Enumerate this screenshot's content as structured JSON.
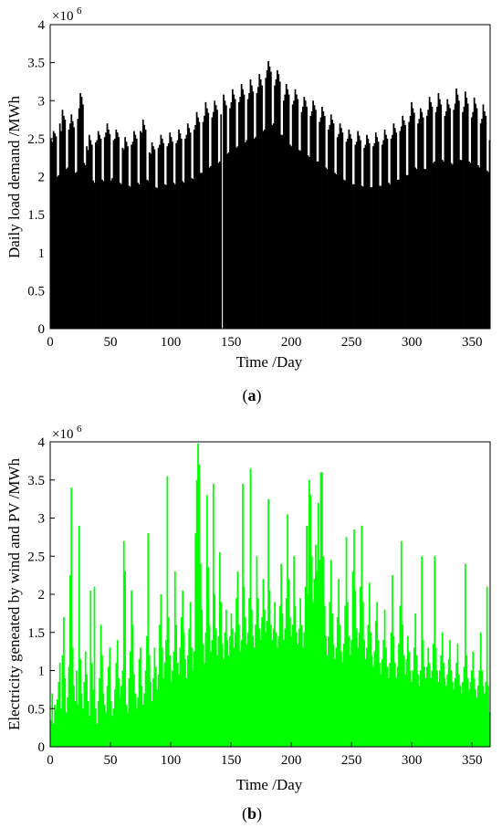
{
  "chart_data": [
    {
      "type": "bar",
      "panel_label": "a",
      "xlabel": "Time /Day",
      "ylabel": "Daily load demand /MWh",
      "y_multiplier": "×10^6",
      "xlim": [
        0,
        365
      ],
      "ylim": [
        0,
        4
      ],
      "xticks": [
        0,
        50,
        100,
        150,
        200,
        250,
        300,
        350
      ],
      "yticks": [
        0,
        0.5,
        1,
        1.5,
        2,
        2.5,
        3,
        3.5,
        4
      ],
      "ytick_labels": [
        "0",
        "0.5",
        "1",
        "1.5",
        "2",
        "2.5",
        "3",
        "3.5",
        "4"
      ],
      "grid": false,
      "legend": "none",
      "colors": {
        "bars": "#000000"
      },
      "series": [
        {
          "values": [
            2.5,
            2.46,
            2.6,
            2.57,
            2.53,
            2.0,
            2.02,
            2.7,
            2.6,
            2.88,
            2.8,
            2.75,
            2.1,
            2.12,
            2.62,
            2.7,
            2.82,
            2.73,
            2.65,
            2.05,
            2.06,
            2.76,
            2.9,
            3.1,
            3.05,
            2.95,
            2.18,
            2.15,
            2.4,
            2.35,
            2.55,
            2.48,
            2.42,
            1.95,
            1.92,
            2.45,
            2.48,
            2.6,
            2.55,
            2.5,
            1.96,
            1.94,
            2.52,
            2.58,
            2.7,
            2.62,
            2.56,
            1.95,
            1.98,
            2.48,
            2.5,
            2.62,
            2.58,
            2.52,
            1.92,
            1.9,
            2.38,
            2.36,
            2.52,
            2.46,
            2.4,
            1.88,
            1.87,
            2.42,
            2.46,
            2.6,
            2.55,
            2.5,
            1.92,
            1.9,
            2.6,
            2.58,
            2.75,
            2.68,
            2.62,
            1.96,
            1.95,
            2.32,
            2.3,
            2.45,
            2.4,
            2.36,
            1.86,
            1.85,
            2.38,
            2.42,
            2.55,
            2.5,
            2.44,
            1.9,
            1.89,
            2.4,
            2.44,
            2.58,
            2.52,
            2.46,
            1.92,
            1.9,
            2.44,
            2.48,
            2.62,
            2.57,
            2.5,
            1.94,
            1.92,
            2.5,
            2.55,
            2.7,
            2.64,
            2.58,
            1.98,
            1.97,
            2.62,
            2.68,
            2.85,
            2.78,
            2.72,
            2.05,
            2.05,
            2.72,
            2.8,
            2.98,
            2.9,
            2.84,
            2.12,
            2.14,
            2.78,
            2.85,
            3.0,
            2.94,
            2.88,
            2.18,
            2.2,
            2.82,
            0.0,
            3.08,
            3.0,
            2.94,
            2.3,
            2.32,
            2.9,
            2.98,
            3.15,
            3.08,
            3.02,
            2.38,
            2.4,
            2.98,
            3.05,
            3.22,
            3.15,
            3.08,
            2.45,
            2.48,
            3.02,
            3.1,
            3.28,
            3.2,
            3.12,
            2.5,
            2.52,
            3.1,
            3.18,
            3.35,
            3.28,
            3.2,
            2.6,
            2.62,
            3.3,
            3.4,
            3.52,
            3.45,
            3.38,
            2.68,
            2.7,
            3.2,
            3.28,
            3.4,
            3.35,
            3.25,
            2.55,
            2.55,
            3.0,
            3.08,
            3.22,
            3.15,
            3.08,
            2.42,
            2.4,
            2.95,
            3.0,
            3.15,
            3.08,
            3.02,
            2.35,
            2.34,
            2.85,
            2.92,
            3.05,
            3.0,
            2.92,
            2.28,
            2.26,
            2.8,
            2.86,
            3.0,
            2.94,
            2.88,
            2.2,
            2.2,
            2.72,
            2.78,
            2.92,
            2.86,
            2.8,
            2.12,
            2.1,
            2.62,
            2.68,
            2.82,
            2.75,
            2.7,
            2.05,
            2.03,
            2.52,
            2.56,
            2.7,
            2.64,
            2.58,
            1.96,
            1.95,
            2.46,
            2.5,
            2.62,
            2.56,
            2.5,
            1.9,
            1.9,
            2.42,
            2.46,
            2.6,
            2.54,
            2.48,
            1.88,
            1.87,
            2.38,
            2.42,
            2.55,
            2.5,
            2.44,
            1.86,
            1.86,
            2.4,
            2.44,
            2.58,
            2.52,
            2.46,
            1.88,
            1.88,
            2.42,
            2.48,
            2.62,
            2.55,
            2.5,
            1.92,
            1.9,
            2.5,
            2.55,
            2.7,
            2.64,
            2.58,
            1.96,
            1.96,
            2.6,
            2.66,
            2.8,
            2.74,
            2.68,
            2.02,
            2.02,
            2.72,
            2.8,
            2.98,
            2.9,
            2.84,
            2.12,
            2.1,
            2.7,
            2.76,
            2.9,
            2.85,
            2.78,
            2.1,
            2.1,
            2.8,
            2.88,
            3.05,
            2.98,
            2.92,
            2.18,
            2.2,
            2.85,
            2.92,
            3.1,
            3.02,
            2.95,
            2.22,
            2.2,
            2.8,
            2.86,
            3.02,
            2.95,
            2.9,
            2.18,
            2.16,
            2.88,
            2.96,
            3.16,
            3.08,
            3.0,
            2.22,
            2.22,
            2.85,
            2.92,
            3.12,
            3.04,
            2.96,
            2.2,
            2.18,
            2.78,
            2.85,
            3.04,
            2.96,
            2.9,
            2.15,
            2.12,
            2.7,
            2.76,
            2.95,
            2.86,
            2.8,
            2.08,
            2.06,
            2.48
          ]
        }
      ]
    },
    {
      "type": "bar",
      "panel_label": "b",
      "xlabel": "Time /Day",
      "ylabel": "Electricity geneated by wind and PV /MWh",
      "y_multiplier": "×10^6",
      "xlim": [
        0,
        365
      ],
      "ylim": [
        0,
        4
      ],
      "xticks": [
        0,
        50,
        100,
        150,
        200,
        250,
        300,
        350
      ],
      "yticks": [
        0,
        0.5,
        1,
        1.5,
        2,
        2.5,
        3,
        3.5,
        4
      ],
      "ytick_labels": [
        "0",
        "0.5",
        "1",
        "1.5",
        "2",
        "2.5",
        "3",
        "3.5",
        "4"
      ],
      "grid": false,
      "legend": "none",
      "colors": {
        "bars": "#00ff00"
      },
      "series": [
        {
          "values": [
            0.35,
            0.7,
            0.3,
            0.55,
            0.48,
            0.62,
            0.85,
            1.1,
            0.5,
            1.2,
            1.7,
            0.9,
            0.45,
            0.65,
            1.05,
            2.25,
            3.4,
            1.3,
            0.8,
            0.6,
            1.0,
            0.55,
            2.9,
            1.15,
            0.7,
            0.5,
            0.85,
            1.25,
            0.95,
            0.6,
            0.4,
            2.05,
            1.1,
            0.75,
            2.1,
            0.5,
            0.3,
            0.6,
            0.9,
            1.6,
            1.2,
            0.7,
            0.55,
            0.45,
            0.8,
            1.05,
            1.3,
            0.6,
            0.4,
            0.5,
            0.75,
            1.1,
            1.4,
            0.9,
            0.65,
            0.8,
            1.0,
            2.7,
            2.3,
            0.55,
            0.45,
            0.9,
            1.25,
            2.05,
            1.6,
            0.95,
            0.7,
            0.5,
            0.65,
            1.15,
            1.3,
            0.8,
            0.55,
            0.7,
            1.0,
            1.45,
            2.8,
            1.2,
            0.85,
            0.6,
            0.9,
            1.3,
            1.05,
            0.75,
            0.95,
            1.6,
            2.0,
            1.3,
            0.9,
            1.1,
            1.4,
            3.55,
            1.7,
            1.2,
            0.85,
            1.0,
            1.25,
            2.3,
            1.6,
            1.1,
            0.95,
            1.3,
            1.7,
            2.05,
            1.5,
            1.15,
            0.9,
            1.2,
            1.55,
            1.9,
            1.3,
            1.0,
            1.25,
            2.8,
            3.5,
            3.98,
            3.7,
            2.4,
            1.8,
            1.35,
            1.1,
            1.5,
            3.3,
            2.35,
            1.6,
            1.25,
            1.4,
            3.45,
            2.0,
            1.55,
            1.2,
            1.45,
            2.55,
            1.9,
            1.35,
            1.15,
            1.5,
            1.8,
            1.4,
            1.2,
            1.45,
            1.75,
            1.55,
            1.3,
            1.5,
            1.95,
            2.3,
            1.6,
            1.25,
            1.4,
            3.45,
            2.1,
            1.7,
            1.35,
            1.5,
            1.95,
            3.65,
            1.8,
            1.45,
            1.3,
            1.6,
            2.5,
            1.95,
            1.55,
            1.4,
            1.7,
            2.2,
            1.8,
            1.5,
            1.65,
            3.25,
            2.05,
            1.6,
            1.4,
            1.55,
            1.9,
            1.5,
            1.3,
            1.45,
            1.85,
            2.4,
            1.75,
            1.4,
            1.55,
            1.95,
            3.05,
            2.2,
            1.7,
            1.45,
            1.6,
            2.5,
            1.85,
            1.5,
            1.35,
            1.55,
            1.95,
            1.6,
            1.3,
            1.5,
            2.1,
            2.9,
            2.0,
            3.5,
            3.3,
            2.5,
            1.9,
            2.2,
            2.65,
            2.3,
            3.2,
            2.45,
            3.6,
            3.6,
            2.5,
            1.85,
            1.45,
            1.2,
            1.45,
            1.9,
            2.45,
            1.75,
            1.35,
            1.15,
            1.3,
            1.7,
            2.2,
            1.6,
            1.25,
            1.1,
            1.35,
            1.85,
            2.75,
            1.9,
            1.45,
            1.2,
            1.4,
            2.3,
            2.85,
            2.05,
            1.55,
            1.3,
            1.5,
            2.1,
            2.9,
            1.9,
            1.4,
            1.15,
            1.3,
            1.6,
            2.15,
            1.5,
            1.2,
            1.05,
            1.25,
            1.65,
            1.9,
            1.4,
            1.1,
            0.95,
            1.15,
            1.4,
            1.8,
            1.3,
            1.05,
            0.9,
            1.1,
            1.5,
            2.25,
            1.45,
            1.1,
            0.9,
            1.05,
            1.35,
            1.85,
            2.7,
            1.6,
            1.2,
            0.95,
            1.15,
            1.45,
            1.25,
            1.0,
            0.85,
            1.0,
            1.3,
            1.75,
            1.2,
            0.95,
            0.8,
            1.0,
            2.5,
            1.4,
            1.05,
            0.9,
            1.05,
            1.3,
            1.1,
            0.9,
            1.0,
            1.35,
            2.5,
            1.3,
            1.0,
            0.85,
            1.0,
            1.2,
            1.5,
            1.1,
            0.9,
            0.8,
            0.95,
            1.15,
            1.4,
            1.0,
            0.85,
            0.75,
            0.9,
            1.1,
            1.35,
            0.95,
            0.8,
            0.7,
            0.85,
            1.05,
            2.4,
            1.2,
            0.9,
            0.75,
            0.85,
            1.0,
            1.25,
            0.9,
            0.75,
            0.65,
            0.8,
            1.0,
            1.5,
            1.0,
            0.8,
            0.7,
            0.85,
            2.1,
            0.8,
            0.45
          ]
        }
      ]
    }
  ]
}
